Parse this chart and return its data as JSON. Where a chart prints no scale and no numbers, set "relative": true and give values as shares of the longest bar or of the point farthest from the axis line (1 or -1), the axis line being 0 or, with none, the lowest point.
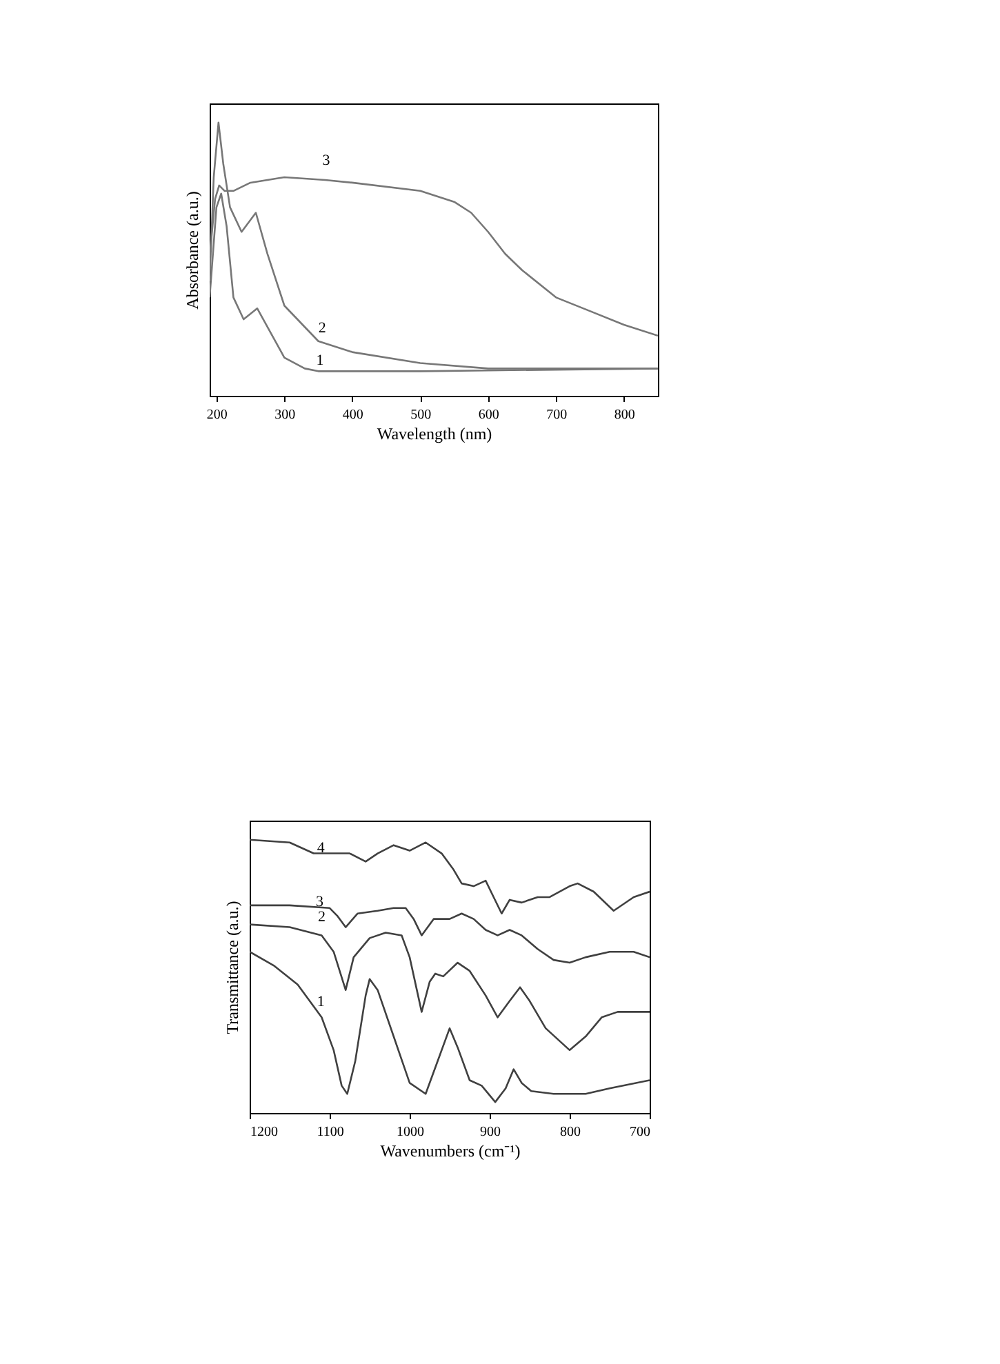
{
  "chart_data": [
    {
      "type": "line",
      "xlabel": "Wavelength (nm)",
      "ylabel": "Absorbance (a.u.)",
      "relative": true,
      "xlim": [
        190,
        850
      ],
      "xticks": [
        200,
        300,
        400,
        500,
        600,
        700,
        800
      ],
      "grid": false,
      "tick_labels": "x",
      "series": [
        {
          "color": "#777777",
          "x": [
            190,
            200,
            207,
            215,
            225,
            240,
            260,
            280,
            300,
            330,
            350,
            500,
            850
          ],
          "values": [
            0.36,
            0.69,
            0.74,
            0.62,
            0.36,
            0.28,
            0.32,
            0.23,
            0.14,
            0.1,
            0.09,
            0.09,
            0.1
          ]
        },
        {
          "color": "#777777",
          "x": [
            190,
            196,
            203,
            210,
            220,
            237,
            258,
            275,
            300,
            350,
            400,
            500,
            600,
            700,
            850
          ],
          "values": [
            0.42,
            0.8,
            1.0,
            0.85,
            0.69,
            0.6,
            0.67,
            0.52,
            0.33,
            0.2,
            0.16,
            0.12,
            0.1,
            0.1,
            0.1
          ]
        },
        {
          "color": "#777777",
          "x": [
            190,
            198,
            204,
            212,
            225,
            250,
            300,
            360,
            400,
            500,
            550,
            575,
            600,
            625,
            650,
            700,
            750,
            800,
            850
          ],
          "values": [
            0.51,
            0.72,
            0.77,
            0.75,
            0.75,
            0.78,
            0.8,
            0.79,
            0.78,
            0.75,
            0.71,
            0.67,
            0.6,
            0.52,
            0.46,
            0.36,
            0.31,
            0.26,
            0.22
          ]
        }
      ],
      "annotations": [
        "1",
        "2",
        "3"
      ]
    },
    {
      "type": "line",
      "xlabel": "Wavenumbers (cm⁻¹)",
      "ylabel": "Transmittance (a.u.)",
      "relative": true,
      "xlim": [
        1200,
        700
      ],
      "xticks": [
        1200,
        1100,
        1000,
        900,
        800,
        700
      ],
      "grid": false,
      "tick_labels": "x",
      "series": [
        {
          "color": "#404040",
          "x": [
            1200,
            1170,
            1140,
            1110,
            1095,
            1085,
            1078,
            1068,
            1055,
            1050,
            1040,
            1020,
            1000,
            980,
            965,
            950,
            940,
            925,
            910,
            893,
            880,
            870,
            860,
            848,
            820,
            780,
            750,
            700
          ],
          "values": [
            0.59,
            0.54,
            0.47,
            0.35,
            0.23,
            0.1,
            0.07,
            0.19,
            0.43,
            0.49,
            0.45,
            0.28,
            0.11,
            0.07,
            0.19,
            0.31,
            0.24,
            0.12,
            0.1,
            0.04,
            0.09,
            0.16,
            0.11,
            0.08,
            0.07,
            0.07,
            0.09,
            0.12
          ]
        },
        {
          "color": "#404040",
          "x": [
            1200,
            1150,
            1110,
            1095,
            1080,
            1070,
            1050,
            1030,
            1010,
            1000,
            985,
            975,
            968,
            958,
            940,
            925,
            905,
            890,
            875,
            862,
            850,
            830,
            800,
            780,
            760,
            740,
            700
          ],
          "values": [
            0.69,
            0.68,
            0.65,
            0.59,
            0.45,
            0.57,
            0.64,
            0.66,
            0.65,
            0.57,
            0.37,
            0.48,
            0.51,
            0.5,
            0.55,
            0.52,
            0.43,
            0.35,
            0.41,
            0.46,
            0.41,
            0.31,
            0.23,
            0.28,
            0.35,
            0.37,
            0.37
          ]
        },
        {
          "color": "#404040",
          "x": [
            1200,
            1150,
            1100,
            1090,
            1080,
            1065,
            1040,
            1020,
            1005,
            995,
            985,
            970,
            950,
            935,
            920,
            905,
            890,
            875,
            860,
            840,
            820,
            800,
            780,
            750,
            720,
            700
          ],
          "values": [
            0.76,
            0.76,
            0.75,
            0.72,
            0.68,
            0.73,
            0.74,
            0.75,
            0.75,
            0.71,
            0.65,
            0.71,
            0.71,
            0.73,
            0.71,
            0.67,
            0.65,
            0.67,
            0.65,
            0.6,
            0.56,
            0.55,
            0.57,
            0.59,
            0.59,
            0.57
          ]
        },
        {
          "color": "#404040",
          "x": [
            1200,
            1150,
            1120,
            1100,
            1075,
            1055,
            1040,
            1020,
            1000,
            980,
            960,
            945,
            935,
            920,
            905,
            895,
            885,
            875,
            860,
            840,
            825,
            800,
            790,
            770,
            745,
            720,
            700
          ],
          "values": [
            1.0,
            0.99,
            0.95,
            0.95,
            0.95,
            0.92,
            0.95,
            0.98,
            0.96,
            0.99,
            0.95,
            0.89,
            0.84,
            0.83,
            0.85,
            0.79,
            0.73,
            0.78,
            0.77,
            0.79,
            0.79,
            0.83,
            0.84,
            0.81,
            0.74,
            0.79,
            0.81
          ]
        }
      ],
      "annotations": [
        "1",
        "2",
        "3",
        "4"
      ]
    }
  ]
}
